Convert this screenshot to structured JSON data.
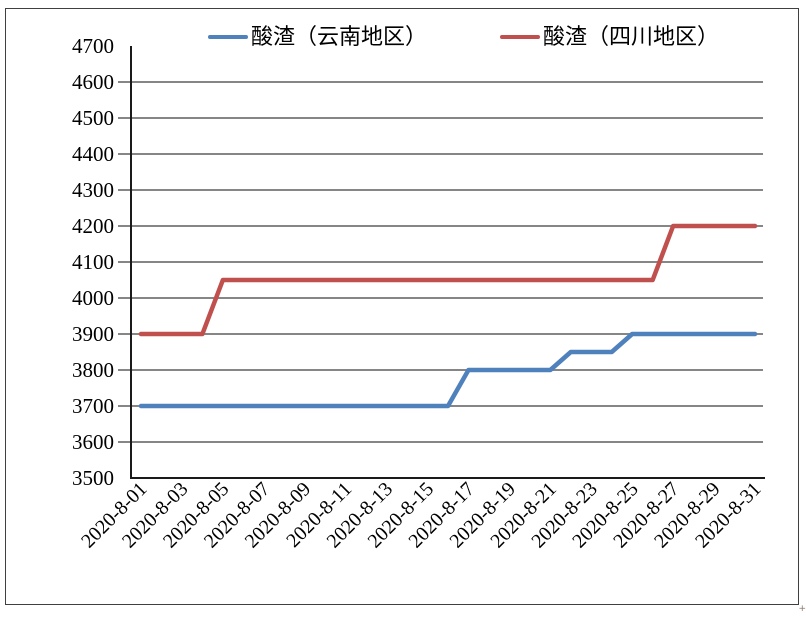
{
  "legend": {
    "items": [
      {
        "label": "酸渣（云南地区）",
        "color": "#4F81BD"
      },
      {
        "label": "酸渣（四川地区）",
        "color": "#C0504D"
      }
    ]
  },
  "corner_mark": "+",
  "chart_data": {
    "type": "line",
    "title": "",
    "xlabel": "",
    "ylabel": "",
    "x": [
      "2020-8-01",
      "2020-8-02",
      "2020-8-03",
      "2020-8-04",
      "2020-8-05",
      "2020-8-06",
      "2020-8-07",
      "2020-8-08",
      "2020-8-09",
      "2020-8-10",
      "2020-8-11",
      "2020-8-12",
      "2020-8-13",
      "2020-8-14",
      "2020-8-15",
      "2020-8-16",
      "2020-8-17",
      "2020-8-18",
      "2020-8-19",
      "2020-8-20",
      "2020-8-21",
      "2020-8-22",
      "2020-8-23",
      "2020-8-24",
      "2020-8-25",
      "2020-8-26",
      "2020-8-27",
      "2020-8-28",
      "2020-8-29",
      "2020-8-30",
      "2020-8-31"
    ],
    "x_tick_every": 2,
    "x_tick_labels": [
      "2020-8-01",
      "2020-8-03",
      "2020-8-05",
      "2020-8-07",
      "2020-8-09",
      "2020-8-11",
      "2020-8-13",
      "2020-8-15",
      "2020-8-17",
      "2020-8-19",
      "2020-8-21",
      "2020-8-23",
      "2020-8-25",
      "2020-8-27",
      "2020-8-29",
      "2020-8-31"
    ],
    "series": [
      {
        "name": "酸渣（云南地区）",
        "color": "#4F81BD",
        "values": [
          3700,
          3700,
          3700,
          3700,
          3700,
          3700,
          3700,
          3700,
          3700,
          3700,
          3700,
          3700,
          3700,
          3700,
          3700,
          3700,
          3800,
          3800,
          3800,
          3800,
          3800,
          3850,
          3850,
          3850,
          3900,
          3900,
          3900,
          3900,
          3900,
          3900,
          3900
        ]
      },
      {
        "name": "酸渣（四川地区）",
        "color": "#C0504D",
        "values": [
          3900,
          3900,
          3900,
          3900,
          4050,
          4050,
          4050,
          4050,
          4050,
          4050,
          4050,
          4050,
          4050,
          4050,
          4050,
          4050,
          4050,
          4050,
          4050,
          4050,
          4050,
          4050,
          4050,
          4050,
          4050,
          4050,
          4200,
          4200,
          4200,
          4200,
          4200
        ]
      }
    ],
    "ylim": [
      3500,
      4700
    ],
    "y_tick_step": 100,
    "y_tick_labels": [
      "3500",
      "3600",
      "3700",
      "3800",
      "3900",
      "4000",
      "4100",
      "4200",
      "4300",
      "4400",
      "4500",
      "4600",
      "4700"
    ],
    "grid": "horizontal",
    "gridline_color": "#868686",
    "axis_color": "#1a1a1a",
    "legend_position": "top"
  }
}
